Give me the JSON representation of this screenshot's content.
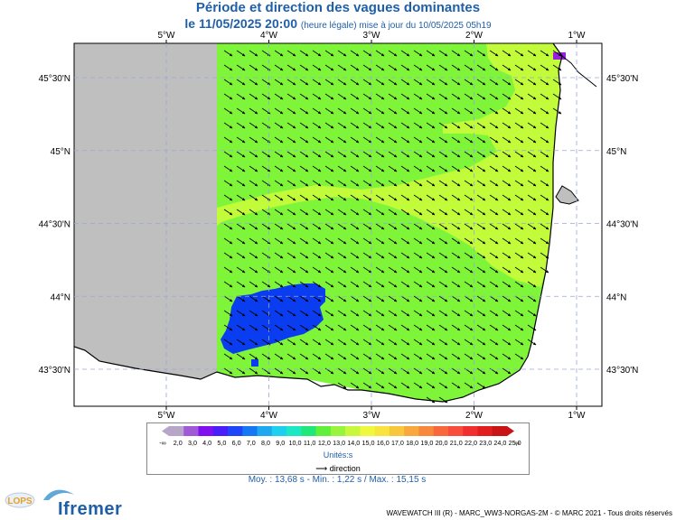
{
  "header": {
    "title": "Période et direction des vagues dominantes",
    "date_line": "le 11/05/2025 20:00",
    "update_note": "(heure légale) mise à jour du 10/05/2025 05h19"
  },
  "map": {
    "lon_labels": [
      "5°W",
      "4°W",
      "3°W",
      "2°W",
      "1°W"
    ],
    "lat_labels": [
      "45°30'N",
      "45°N",
      "44°30'N",
      "44°N",
      "43°30'N"
    ],
    "lon_values": [
      -5,
      -4,
      -3,
      -2,
      -1
    ],
    "lat_values": [
      45.5,
      45.0,
      44.5,
      44.0,
      43.5
    ],
    "colors": {
      "land": "#ffffff",
      "nodata": "#bfbfbf",
      "sea_green": "#7ff53a",
      "sea_yellow": "#c2fb3a",
      "sea_blue": "#0a3cf0",
      "sea_purple": "#9a1ee0"
    }
  },
  "legend": {
    "left_end": "-∞",
    "right_end": "∞",
    "ticks": [
      "2,0",
      "3,0",
      "4,0",
      "5,0",
      "6,0",
      "7,0",
      "8,0",
      "9,0",
      "10,0",
      "11,0",
      "12,0",
      "13,0",
      "14,0",
      "15,0",
      "16,0",
      "17,0",
      "18,0",
      "19,0",
      "20,0",
      "21,0",
      "22,0",
      "23,0",
      "24,0",
      "25,0"
    ],
    "colors": [
      "#b8a6c8",
      "#a05ad8",
      "#8010f0",
      "#4a1ef8",
      "#1e46f8",
      "#1478f4",
      "#1ea8f0",
      "#1ed0f0",
      "#1ee8c4",
      "#20e878",
      "#60f03c",
      "#98f43c",
      "#c8f83c",
      "#f0f83c",
      "#f8e43c",
      "#f8c83c",
      "#f8a83c",
      "#f8883c",
      "#f8683c",
      "#f84c3c",
      "#f03030",
      "#e01e1e",
      "#c81414"
    ],
    "units": "Unités:s",
    "direction_label": "direction",
    "direction_arrow": "⟶"
  },
  "stats": "Moy. : 13,68 s   -   Min. : 1,22 s / Max. : 15,15 s",
  "footer": "WAVEWATCH III (R) - MARC_WW3-NORGAS-2M - © MARC 2021 - Tous droits réservés",
  "logos": {
    "lops": "LOPS",
    "ifremer": "Ifremer"
  }
}
